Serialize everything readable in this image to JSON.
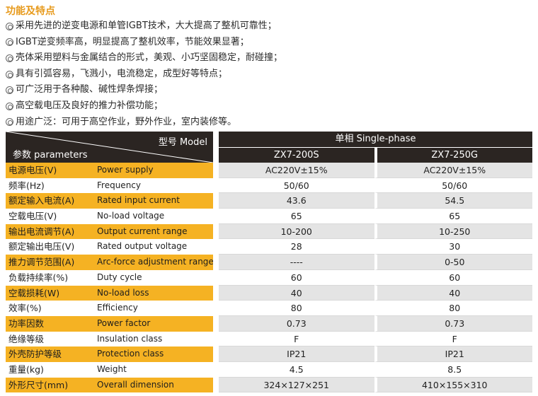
{
  "features": {
    "title": "功能及特点",
    "items": [
      "采用先进的逆变电源和单管IGBT技术，大大提高了整机可靠性；",
      "IGBT逆变频率高，明显提高了整机效率，节能效果显著；",
      "壳体采用塑料与金属结合的形式，美观、小巧坚固稳定，耐碰撞；",
      "具有引弧容易，飞溅小，电流稳定，成型好等特点；",
      "可广泛用于各种酸、碱性焊条焊接；",
      "高空载电压及良好的推力补偿功能；",
      "用途广泛：可用于高空作业，野外作业，室内装修等。"
    ]
  },
  "table": {
    "header": {
      "model_label": "型号 Model",
      "param_label": "参数 parameters",
      "phase": "单相 Single-phase",
      "models": [
        "ZX7-200S",
        "ZX7-250G"
      ]
    },
    "rows": [
      {
        "cn": "电源电压(V)",
        "en": "Power supply",
        "v1": "AC220V±15%",
        "v2": "AC220V±15%",
        "hl": true
      },
      {
        "cn": "频率(Hz)",
        "en": "Frequency",
        "v1": "50/60",
        "v2": "50/60",
        "hl": false
      },
      {
        "cn": "额定输入电流(A)",
        "en": "Rated input current",
        "v1": "43.6",
        "v2": "54.5",
        "hl": true
      },
      {
        "cn": "空载电压(V)",
        "en": "No-load voltage",
        "v1": "65",
        "v2": "65",
        "hl": false
      },
      {
        "cn": "输出电流调节(A)",
        "en": "Output current range",
        "v1": "10-200",
        "v2": "10-250",
        "hl": true
      },
      {
        "cn": "额定输出电压(V)",
        "en": "Rated output voltage",
        "v1": "28",
        "v2": "30",
        "hl": false
      },
      {
        "cn": "推力调节范围(A)",
        "en": "Arc-force adjustment range",
        "v1": "----",
        "v2": "0-50",
        "hl": true
      },
      {
        "cn": "负载持续率(%)",
        "en": "Duty cycle",
        "v1": "60",
        "v2": "60",
        "hl": false
      },
      {
        "cn": "空载损耗(W)",
        "en": "No-load loss",
        "v1": "40",
        "v2": "40",
        "hl": true
      },
      {
        "cn": "效率(%)",
        "en": "Efficiency",
        "v1": "80",
        "v2": "80",
        "hl": false
      },
      {
        "cn": "功率因数",
        "en": "Power factor",
        "v1": "0.73",
        "v2": "0.73",
        "hl": true
      },
      {
        "cn": "绝缘等级",
        "en": "Insulation class",
        "v1": "F",
        "v2": "F",
        "hl": false
      },
      {
        "cn": "外壳防护等级",
        "en": "Protection class",
        "v1": "IP21",
        "v2": "IP21",
        "hl": true
      },
      {
        "cn": "重量(kg)",
        "en": "Weight",
        "v1": "4.5",
        "v2": "8.5",
        "hl": false
      },
      {
        "cn": "外形尺寸(mm)",
        "en": "Overall dimension",
        "v1": "324×127×251",
        "v2": "410×155×310",
        "hl": true
      }
    ]
  }
}
